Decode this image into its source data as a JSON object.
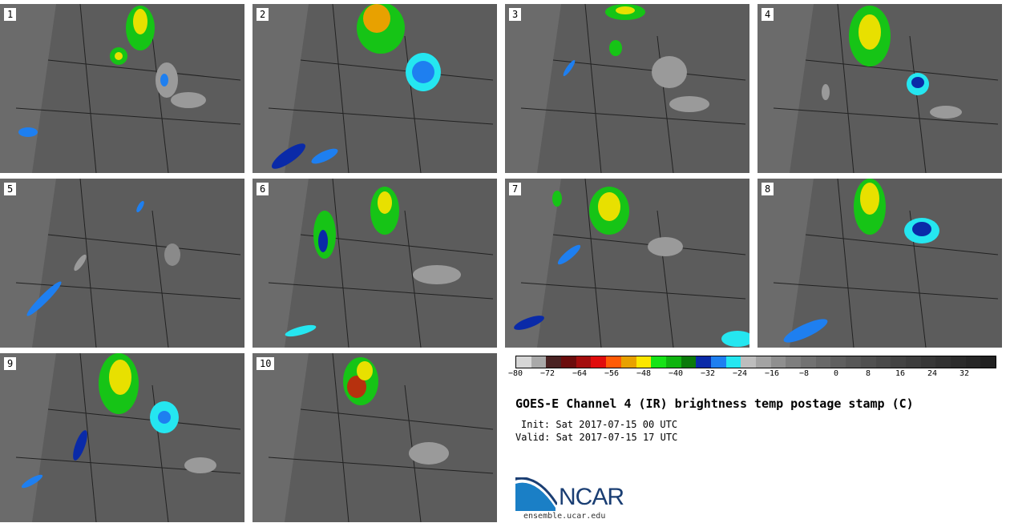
{
  "panels": [
    {
      "label": "1"
    },
    {
      "label": "2"
    },
    {
      "label": "3"
    },
    {
      "label": "4"
    },
    {
      "label": "5"
    },
    {
      "label": "6"
    },
    {
      "label": "7"
    },
    {
      "label": "8"
    },
    {
      "label": "9"
    },
    {
      "label": "10"
    }
  ],
  "colorbar": {
    "colors": [
      "#d6d6d6",
      "#a9a9a9",
      "#4a2222",
      "#6b0c0c",
      "#a40d0d",
      "#e00c0c",
      "#ff5a05",
      "#e8a100",
      "#fce600",
      "#16e316",
      "#0fb40f",
      "#0a7a0a",
      "#0a2aa8",
      "#1e7ff0",
      "#25e6f0",
      "#bdbdbd",
      "#a3a3a3",
      "#8f8f8f",
      "#7e7e7e",
      "#727272",
      "#686868",
      "#5f5f5f",
      "#575757",
      "#505050",
      "#494949",
      "#434343",
      "#3d3d3d",
      "#373737",
      "#313131",
      "#2b2b2b",
      "#262626",
      "#202020"
    ],
    "ticks": [
      "-80",
      "-72",
      "-64",
      "-56",
      "-48",
      "-40",
      "-32",
      "-24",
      "-16",
      "-8",
      "0",
      "8",
      "16",
      "24",
      "32"
    ]
  },
  "title": "GOES-E Channel 4 (IR) brightness temp postage stamp (C)",
  "init_line": "Init: Sat 2017-07-15 00 UTC",
  "valid_line": "Valid: Sat 2017-07-15 17 UTC",
  "logo_text": "NCAR",
  "url": "ensemble.ucar.edu"
}
